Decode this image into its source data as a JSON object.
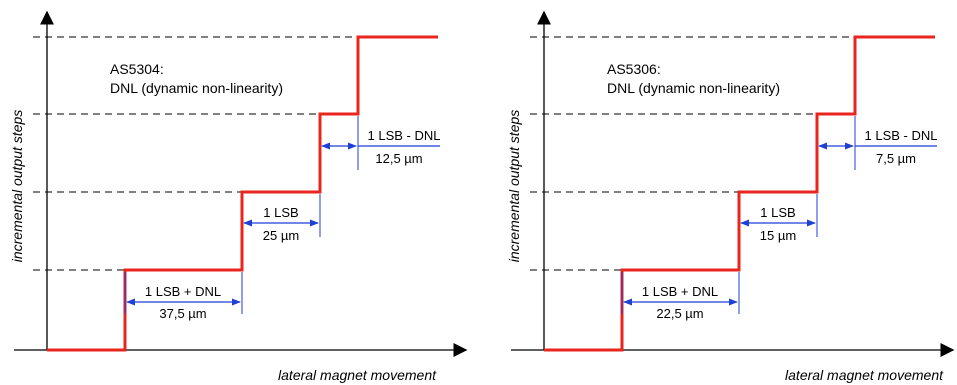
{
  "colors": {
    "step": "#e8251e",
    "dim": "#1f3fd9",
    "axis": "#000000",
    "dash": "#000000"
  },
  "panels": [
    {
      "id": "as5304",
      "title_line1": "AS5304:",
      "title_line2": "DNL (dynamic non-linearity)",
      "y_axis_label": "incremental output steps",
      "x_axis_label": "lateral magnet movement",
      "dims": [
        {
          "label": "1 LSB + DNL",
          "value": "37,5 µm"
        },
        {
          "label": "1 LSB",
          "value": "25 µm"
        },
        {
          "label": "1 LSB - DNL",
          "value": "12,5 µm"
        }
      ]
    },
    {
      "id": "as5306",
      "title_line1": "AS5306:",
      "title_line2": "DNL (dynamic non-linearity)",
      "y_axis_label": "incremental output steps",
      "x_axis_label": "lateral magnet movement",
      "dims": [
        {
          "label": "1 LSB + DNL",
          "value": "22,5 µm"
        },
        {
          "label": "1 LSB",
          "value": "15 µm"
        },
        {
          "label": "1 LSB - DNL",
          "value": "7,5 µm"
        }
      ]
    }
  ]
}
